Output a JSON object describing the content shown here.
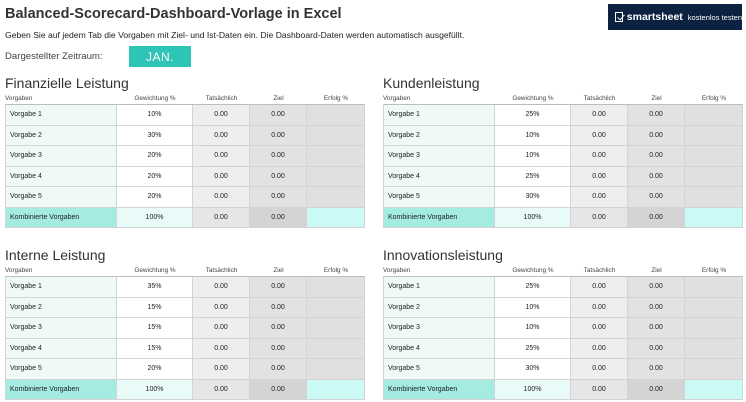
{
  "header": {
    "title": "Balanced-Scorecard-Dashboard-Vorlage in Excel",
    "subtitle": "Geben Sie auf jedem Tab die Vorgaben mit Ziel- und Ist-Daten ein. Die Dashboard-Daten werden automatisch ausgefüllt.",
    "period_label": "Dargestellter Zeitraum:",
    "period_value": "JAN."
  },
  "brand": {
    "name": "smartsheet",
    "cta": "kostenlos testen",
    "icon": "smartsheet-check-icon",
    "background": "#0d2240"
  },
  "columns": [
    "Vorgaben",
    "Gewichtung %",
    "Tatsächlich",
    "Ziel",
    "Erfolg %"
  ],
  "colors": {
    "accent": "#2ec4b6",
    "total_row": "#a4ebe2"
  },
  "sections": [
    {
      "title": "Finanzielle Leistung",
      "rows": [
        {
          "label": "Vorgabe 1",
          "weight": "10%",
          "actual": "0.00",
          "target": "0.00",
          "success": ""
        },
        {
          "label": "Vorgabe 2",
          "weight": "30%",
          "actual": "0.00",
          "target": "0.00",
          "success": ""
        },
        {
          "label": "Vorgabe 3",
          "weight": "20%",
          "actual": "0.00",
          "target": "0.00",
          "success": ""
        },
        {
          "label": "Vorgabe 4",
          "weight": "20%",
          "actual": "0.00",
          "target": "0.00",
          "success": ""
        },
        {
          "label": "Vorgabe 5",
          "weight": "20%",
          "actual": "0.00",
          "target": "0.00",
          "success": ""
        }
      ],
      "total": {
        "label": "Kombinierte Vorgaben",
        "weight": "100%",
        "actual": "0.00",
        "target": "0.00",
        "success": ""
      }
    },
    {
      "title": "Kundenleistung",
      "rows": [
        {
          "label": "Vorgabe 1",
          "weight": "25%",
          "actual": "0.00",
          "target": "0.00",
          "success": ""
        },
        {
          "label": "Vorgabe 2",
          "weight": "10%",
          "actual": "0.00",
          "target": "0.00",
          "success": ""
        },
        {
          "label": "Vorgabe 3",
          "weight": "10%",
          "actual": "0.00",
          "target": "0.00",
          "success": ""
        },
        {
          "label": "Vorgabe 4",
          "weight": "25%",
          "actual": "0.00",
          "target": "0.00",
          "success": ""
        },
        {
          "label": "Vorgabe 5",
          "weight": "30%",
          "actual": "0.00",
          "target": "0.00",
          "success": ""
        }
      ],
      "total": {
        "label": "Kombinierte Vorgaben",
        "weight": "100%",
        "actual": "0.00",
        "target": "0.00",
        "success": ""
      }
    },
    {
      "title": "Interne Leistung",
      "rows": [
        {
          "label": "Vorgabe 1",
          "weight": "35%",
          "actual": "0.00",
          "target": "0.00",
          "success": ""
        },
        {
          "label": "Vorgabe 2",
          "weight": "15%",
          "actual": "0.00",
          "target": "0.00",
          "success": ""
        },
        {
          "label": "Vorgabe 3",
          "weight": "15%",
          "actual": "0.00",
          "target": "0.00",
          "success": ""
        },
        {
          "label": "Vorgabe 4",
          "weight": "15%",
          "actual": "0.00",
          "target": "0.00",
          "success": ""
        },
        {
          "label": "Vorgabe 5",
          "weight": "20%",
          "actual": "0.00",
          "target": "0.00",
          "success": ""
        }
      ],
      "total": {
        "label": "Kombinierte Vorgaben",
        "weight": "100%",
        "actual": "0.00",
        "target": "0.00",
        "success": ""
      }
    },
    {
      "title": "Innovationsleistung",
      "rows": [
        {
          "label": "Vorgabe 1",
          "weight": "25%",
          "actual": "0.00",
          "target": "0.00",
          "success": ""
        },
        {
          "label": "Vorgabe 2",
          "weight": "10%",
          "actual": "0.00",
          "target": "0.00",
          "success": ""
        },
        {
          "label": "Vorgabe 3",
          "weight": "10%",
          "actual": "0.00",
          "target": "0.00",
          "success": ""
        },
        {
          "label": "Vorgabe 4",
          "weight": "25%",
          "actual": "0.00",
          "target": "0.00",
          "success": ""
        },
        {
          "label": "Vorgabe 5",
          "weight": "30%",
          "actual": "0.00",
          "target": "0.00",
          "success": ""
        }
      ],
      "total": {
        "label": "Kombinierte Vorgaben",
        "weight": "100%",
        "actual": "0.00",
        "target": "0.00",
        "success": ""
      }
    }
  ]
}
